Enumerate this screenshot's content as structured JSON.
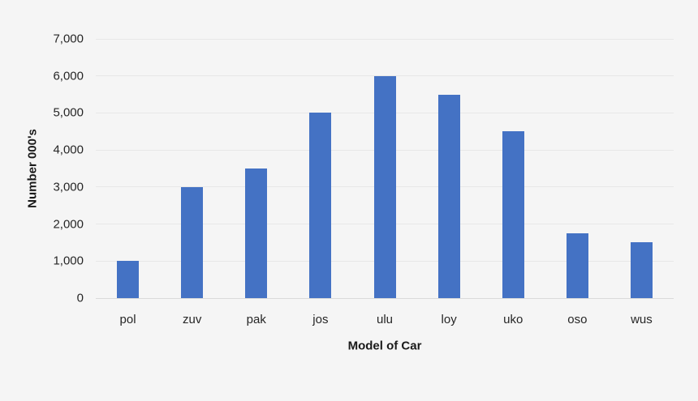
{
  "chart_data": {
    "type": "bar",
    "title": "",
    "categories": [
      "pol",
      "zuv",
      "pak",
      "jos",
      "ulu",
      "loy",
      "uko",
      "oso",
      "wus"
    ],
    "values": [
      1000,
      3000,
      3500,
      5000,
      6000,
      5500,
      4500,
      1750,
      1500
    ],
    "xlabel": "Model of Car",
    "ylabel": "Number 000's",
    "ylim": [
      0,
      7000
    ],
    "ytick_step": 1000,
    "ytick_labels": [
      "0",
      "1,000",
      "2,000",
      "3,000",
      "4,000",
      "5,000",
      "6,000",
      "7,000"
    ],
    "grid": true,
    "legend": "none",
    "bar_color": "#4472c4",
    "background_color": "#f5f5f5",
    "gridline_color": "#e7e7e7",
    "axis_line_color": "#dadada",
    "text_color": "#262626"
  }
}
